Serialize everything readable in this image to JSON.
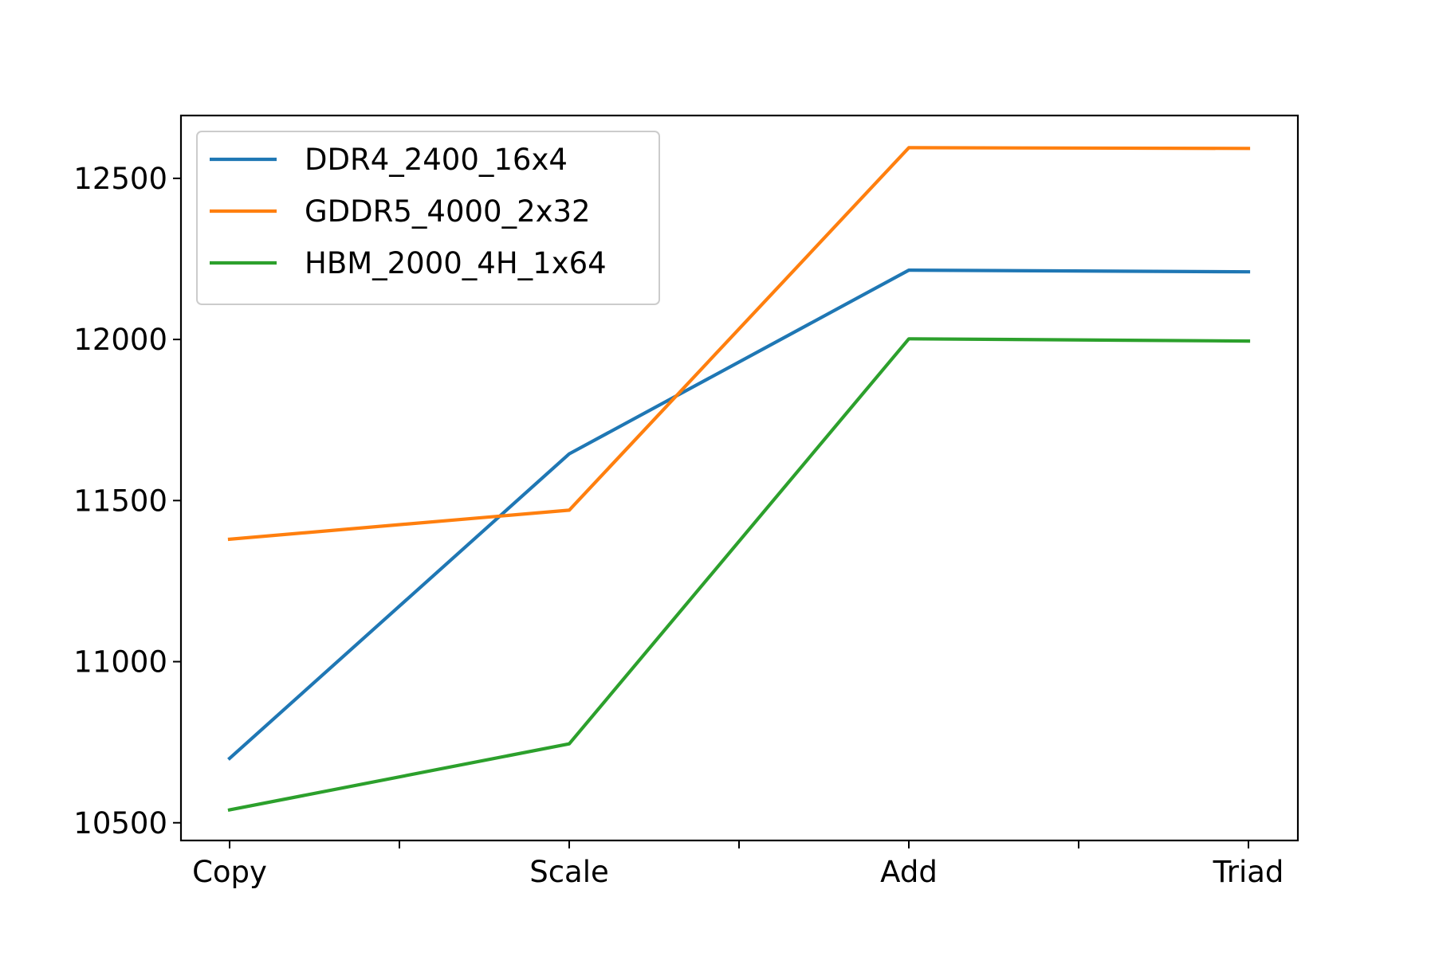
{
  "chart_data": {
    "type": "line",
    "title": "",
    "xlabel": "",
    "ylabel": "",
    "categories": [
      "Copy",
      "Scale",
      "Add",
      "Triad"
    ],
    "ylim": [
      10445,
      12695
    ],
    "yticks": [
      10500,
      11000,
      11500,
      12000,
      12500
    ],
    "minor_x_ticks": true,
    "grid": false,
    "legend_position": "top-left",
    "series": [
      {
        "name": "DDR4_2400_16x4",
        "color": "#1f77b4",
        "values": [
          10700,
          11645,
          12215,
          12210
        ]
      },
      {
        "name": "GDDR5_4000_2x32",
        "color": "#ff7f0e",
        "values": [
          11380,
          11470,
          12595,
          12593
        ]
      },
      {
        "name": "HBM_2000_4H_1x64",
        "color": "#2ca02c",
        "values": [
          10540,
          10745,
          12002,
          11995
        ]
      }
    ]
  }
}
